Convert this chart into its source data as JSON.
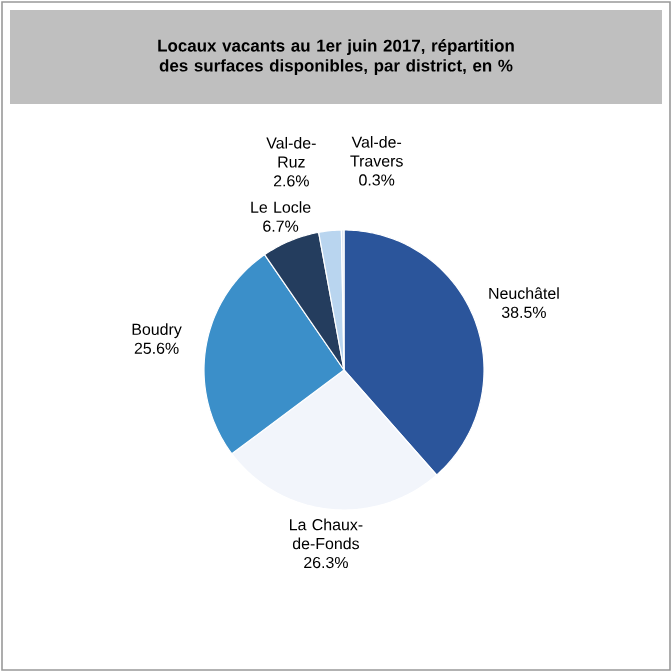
{
  "chart_data": {
    "type": "pie",
    "title": "Locaux vacants au 1er juin 2017, répartition des surfaces disponibles, par district, en %",
    "categories": [
      "Neuchâtel",
      "La Chaux-de-Fonds",
      "Boudry",
      "Le Locle",
      "Val-de-Ruz",
      "Val-de-Travers"
    ],
    "values": [
      38.5,
      26.3,
      25.6,
      6.7,
      2.6,
      0.3
    ],
    "value_labels": [
      "38.5%",
      "26.3%",
      "25.6%",
      "6.7%",
      "2.6%",
      "0.3%"
    ],
    "colors": [
      "#2b559b",
      "#f2f5fb",
      "#3b8fc9",
      "#243d5e",
      "#b9d5ef",
      "#dde7f4"
    ]
  }
}
